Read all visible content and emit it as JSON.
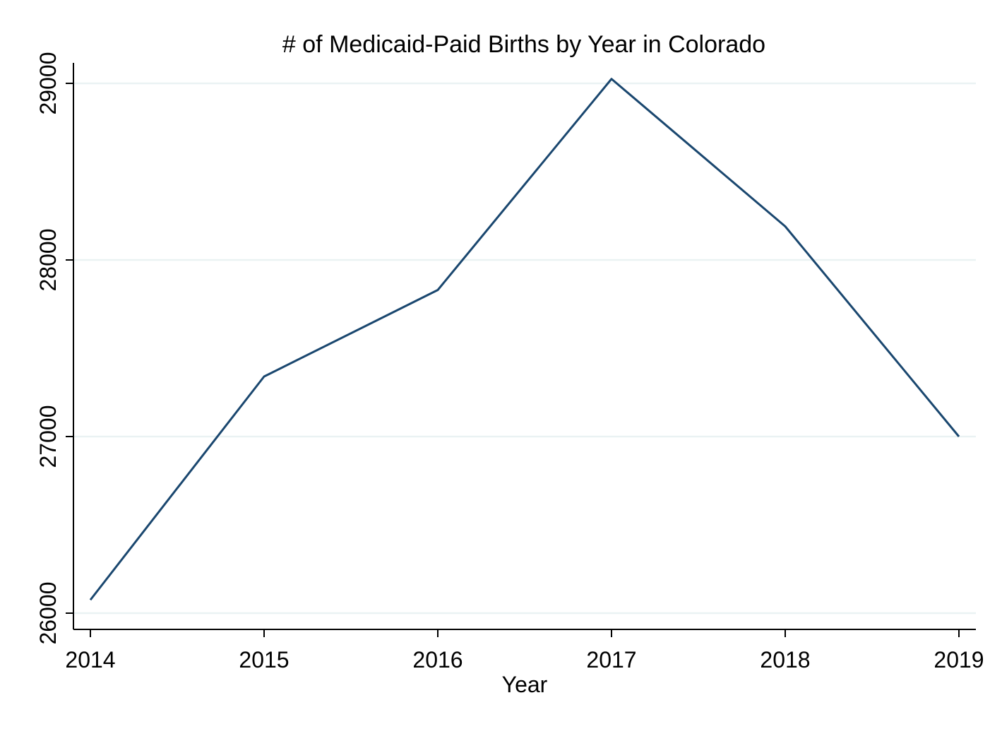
{
  "chart_data": {
    "type": "line",
    "title": "# of Medicaid-Paid Births by Year in Colorado",
    "xlabel": "Year",
    "ylabel": "",
    "x": [
      2014,
      2015,
      2016,
      2017,
      2018,
      2019
    ],
    "series": [
      {
        "values": [
          26075,
          27340,
          27830,
          29025,
          28190,
          27000
        ],
        "color": "#1a476f"
      }
    ],
    "xlim": [
      2014,
      2019
    ],
    "ylim": [
      26000,
      29000
    ],
    "x_ticks": [
      "2014",
      "2015",
      "2016",
      "2017",
      "2018",
      "2019"
    ],
    "y_ticks": [
      "26000",
      "27000",
      "28000",
      "29000"
    ],
    "grid": true,
    "grid_color": "#eaf2f3",
    "legend": "none"
  }
}
